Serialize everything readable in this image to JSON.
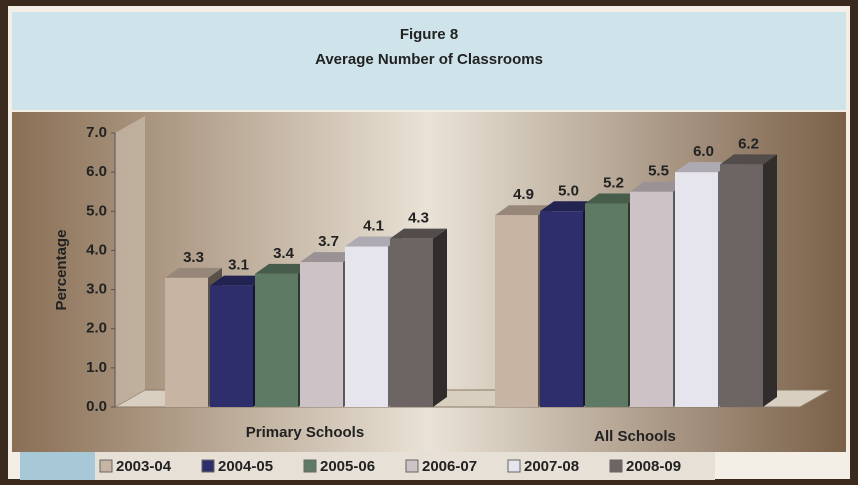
{
  "chart_data": {
    "type": "bar3d",
    "title": "Figure 8",
    "subtitle": "Average Number of Classrooms",
    "y_label": "Percentage",
    "categories": [
      "Primary Schools",
      "All Schools"
    ],
    "series": [
      {
        "name": "2003-04",
        "color": "#c8b4a2",
        "values": [
          3.3,
          4.9
        ],
        "value_labels": [
          "3.3",
          "4.9"
        ]
      },
      {
        "name": "2004-05",
        "color": "#2f2e6c",
        "values": [
          3.1,
          5.0
        ],
        "value_labels": [
          "3.1",
          "5.0"
        ]
      },
      {
        "name": "2005-06",
        "color": "#5f7a64",
        "values": [
          3.4,
          5.2
        ],
        "value_labels": [
          "3.4",
          "5.2"
        ]
      },
      {
        "name": "2006-07",
        "color": "#cdc3c6",
        "values": [
          3.7,
          5.5
        ],
        "value_labels": [
          "3.7",
          "5.5"
        ]
      },
      {
        "name": "2007-08",
        "color": "#e6e4ec",
        "values": [
          4.1,
          6.0
        ],
        "value_labels": [
          "4.1",
          "6.0"
        ]
      },
      {
        "name": "2008-09",
        "color": "#6d6564",
        "values": [
          4.3,
          6.2
        ],
        "value_labels": [
          "4.3",
          "6.2"
        ]
      }
    ],
    "ylim": [
      0,
      7
    ],
    "yticks": [
      {
        "value": 0,
        "label": "0.0"
      },
      {
        "value": 1,
        "label": "1.0"
      },
      {
        "value": 2,
        "label": "2.0"
      },
      {
        "value": 3,
        "label": "3.0"
      },
      {
        "value": 4,
        "label": "4.0"
      },
      {
        "value": 5,
        "label": "5.0"
      },
      {
        "value": 6,
        "label": "6.0"
      },
      {
        "value": 7,
        "label": "7.0"
      }
    ],
    "grid": false
  }
}
